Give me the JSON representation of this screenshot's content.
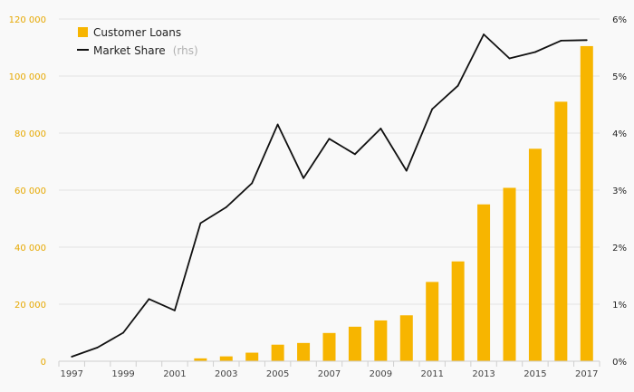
{
  "chart_data": {
    "type": "bar+line",
    "categories": [
      "1997",
      "1998",
      "1999",
      "2000",
      "2001",
      "2002",
      "2003",
      "2004",
      "2005",
      "2006",
      "2007",
      "2008",
      "2009",
      "2010",
      "2011",
      "2012",
      "2013",
      "2014",
      "2015",
      "2016",
      "2017"
    ],
    "x_tick_labels": [
      "1997",
      "1999",
      "2001",
      "2003",
      "2005",
      "2007",
      "2009",
      "2011",
      "2013",
      "2015",
      "2017"
    ],
    "series": [
      {
        "name": "Customer Loans",
        "type": "bar",
        "axis": "left",
        "values": [
          0,
          0,
          0,
          0,
          0,
          1000,
          1700,
          3000,
          5800,
          6400,
          9900,
          12100,
          14300,
          16100,
          27800,
          35000,
          55000,
          60800,
          74500,
          91000,
          110500
        ]
      },
      {
        "name": "Market Share",
        "name_suffix": "(rhs)",
        "type": "line",
        "axis": "right",
        "values": [
          0.0008,
          0.0024,
          0.005,
          0.0109,
          0.0089,
          0.0242,
          0.027,
          0.0312,
          0.0415,
          0.0321,
          0.039,
          0.0363,
          0.0408,
          0.0334,
          0.0442,
          0.0483,
          0.0573,
          0.0531,
          0.0542,
          0.0562,
          0.0563
        ]
      }
    ],
    "y_left": {
      "range": [
        0,
        120000
      ],
      "ticks": [
        0,
        20000,
        40000,
        60000,
        80000,
        100000,
        120000
      ],
      "tick_labels": [
        "0",
        "20 000",
        "40 000",
        "60 000",
        "80 000",
        "100 000",
        "120 000"
      ]
    },
    "y_right": {
      "range": [
        0,
        0.06
      ],
      "ticks": [
        0,
        0.01,
        0.02,
        0.03,
        0.04,
        0.05,
        0.06
      ],
      "tick_labels": [
        "0%",
        "1%",
        "2%",
        "3%",
        "4%",
        "5%",
        "6%"
      ]
    },
    "grid": true,
    "legend_position": "top-left",
    "colors": {
      "bars": "#f7b500",
      "line": "#111111",
      "left_axis_text": "#e6a800",
      "right_axis_text": "#222222",
      "background": "#f9f9f9"
    }
  }
}
